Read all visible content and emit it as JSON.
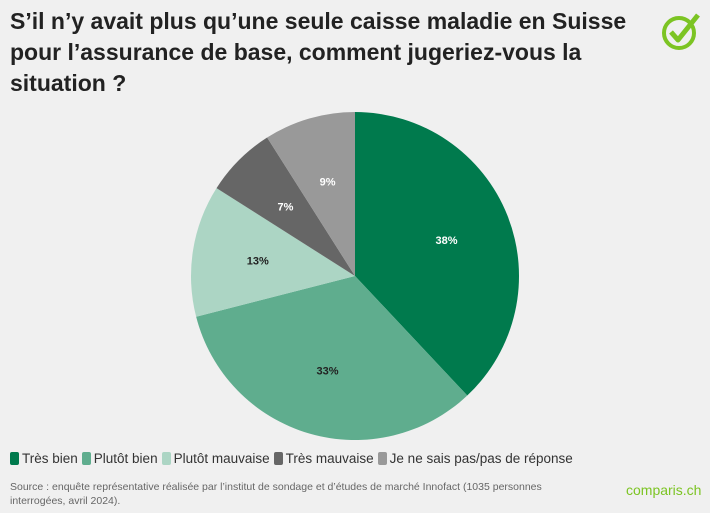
{
  "title": "S’il n’y avait plus qu’une seule caisse maladie en Suisse pour l’assurance de base, comment jugeriez-vous la situation ?",
  "logo_icon": "check-circle-icon",
  "brand": "comparis.ch",
  "source": "Source : enquête représentative réalisée par l’institut de sondage et d’études de marché Innofact (1035 personnes interrogées, avril 2024).",
  "colors": {
    "background": "#f0f0f0",
    "brand": "#7cc423"
  },
  "chart_data": {
    "type": "pie",
    "start": "top, clockwise",
    "legend_position": "bottom",
    "slices": [
      {
        "label": "Très bien",
        "value": 38,
        "display": "38%",
        "color": "#007a4d"
      },
      {
        "label": "Plutôt bien",
        "value": 33,
        "display": "33%",
        "color": "#5fad8e"
      },
      {
        "label": "Plutôt mauvaise",
        "value": 13,
        "display": "13%",
        "color": "#acd5c4"
      },
      {
        "label": "Très mauvaise",
        "value": 7,
        "display": "7%",
        "color": "#666666"
      },
      {
        "label": "Je ne sais pas/pas de réponse",
        "value": 9,
        "display": "9%",
        "color": "#999999"
      }
    ]
  }
}
